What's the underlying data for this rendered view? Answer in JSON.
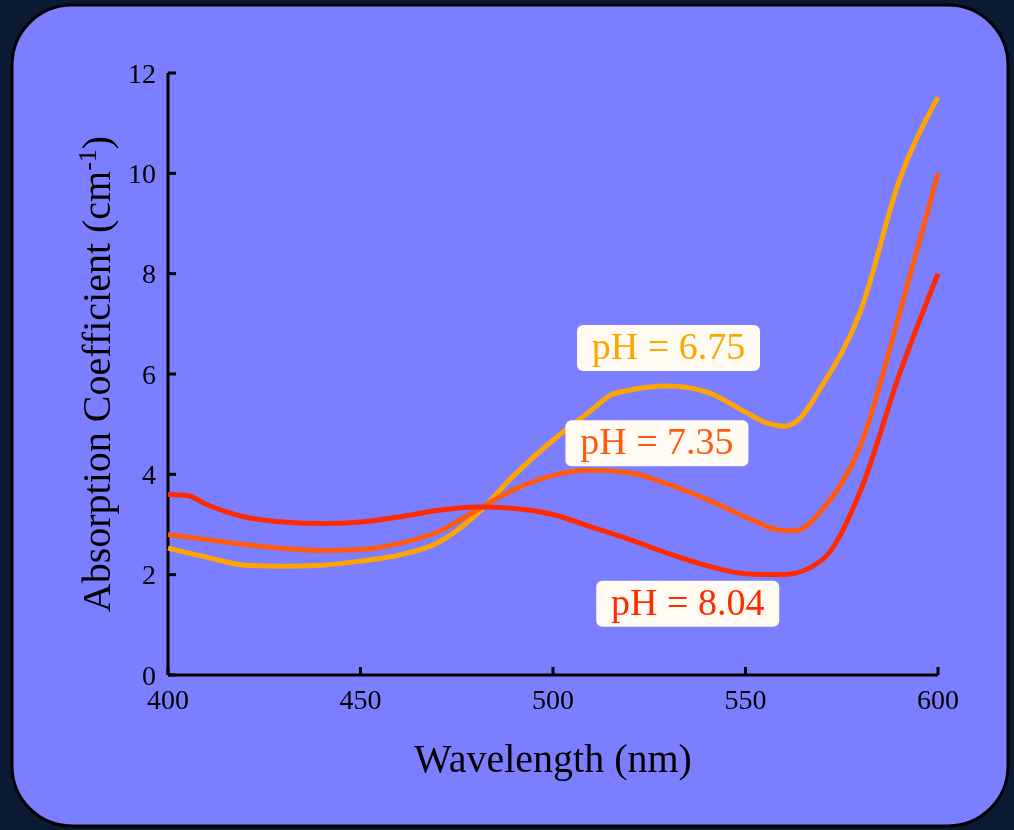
{
  "chart_data": {
    "type": "line",
    "xlabel": "Wavelength (nm)",
    "ylabel": "Absorption Coefficient (cm$^{-1}$)",
    "xlim": [
      400,
      600
    ],
    "xticks": [
      400,
      450,
      500,
      550,
      600
    ],
    "ylim": [
      0,
      12
    ],
    "yticks": [
      0,
      2,
      4,
      6,
      8,
      10,
      12
    ],
    "grid": false,
    "marker": "none",
    "line_style": "solid",
    "series": [
      {
        "name": "pH = 6.75",
        "color": "#ffa500",
        "x": [
          400,
          410,
          420,
          430,
          440,
          450,
          460,
          470,
          480,
          490,
          500,
          510,
          515,
          520,
          530,
          540,
          550,
          555,
          560,
          563,
          570,
          580,
          590,
          600
        ],
        "values": [
          2.53,
          2.35,
          2.19,
          2.17,
          2.19,
          2.27,
          2.39,
          2.63,
          3.19,
          3.99,
          4.68,
          5.28,
          5.58,
          5.68,
          5.76,
          5.64,
          5.24,
          5.04,
          4.96,
          5.04,
          5.78,
          7.28,
          9.87,
          11.52
        ]
      },
      {
        "name": "pH = 7.35",
        "color": "#ff5a10",
        "x": [
          400,
          410,
          420,
          430,
          440,
          450,
          460,
          470,
          480,
          490,
          500,
          510,
          520,
          530,
          540,
          550,
          560,
          563,
          570,
          580,
          590,
          600
        ],
        "values": [
          2.8,
          2.7,
          2.6,
          2.52,
          2.48,
          2.5,
          2.62,
          2.85,
          3.28,
          3.7,
          3.98,
          4.08,
          4.03,
          3.8,
          3.5,
          3.15,
          2.88,
          2.88,
          3.3,
          4.6,
          7.2,
          10.0
        ]
      },
      {
        "name": "pH = 8.04",
        "color": "#ff2a00",
        "x": [
          400,
          405,
          410,
          420,
          430,
          440,
          450,
          460,
          470,
          480,
          490,
          500,
          510,
          520,
          530,
          540,
          550,
          560,
          570,
          580,
          590,
          600
        ],
        "values": [
          3.6,
          3.58,
          3.4,
          3.15,
          3.05,
          3.02,
          3.05,
          3.15,
          3.28,
          3.35,
          3.32,
          3.2,
          2.95,
          2.7,
          2.42,
          2.18,
          2.02,
          2.0,
          2.3,
          3.7,
          6.0,
          8.0
        ]
      }
    ]
  }
}
